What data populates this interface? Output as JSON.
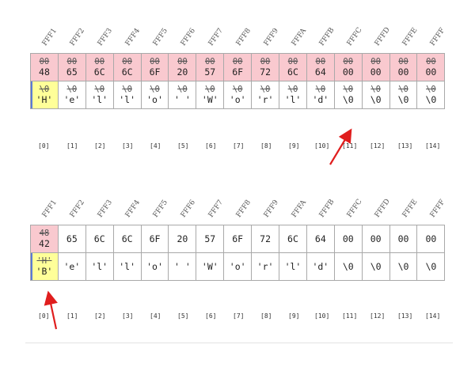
{
  "addresses": [
    "FFF1",
    "FFF2",
    "FFF3",
    "FFF4",
    "FFF5",
    "FFF6",
    "FFF7",
    "FFF8",
    "FFF9",
    "FFFA",
    "FFFB",
    "FFFC",
    "FFFD",
    "FFFE",
    "FFFF"
  ],
  "indices": [
    "[0]",
    "[1]",
    "[2]",
    "[3]",
    "[4]",
    "[5]",
    "[6]",
    "[7]",
    "[8]",
    "[9]",
    "[10]",
    "[11]",
    "[12]",
    "[13]",
    "[14]"
  ],
  "top_table": {
    "hex_old": [
      "00",
      "00",
      "00",
      "00",
      "00",
      "00",
      "00",
      "00",
      "00",
      "00",
      "00",
      "00",
      "00",
      "00",
      "00"
    ],
    "hex_new": [
      "48",
      "65",
      "6C",
      "6C",
      "6F",
      "20",
      "57",
      "6F",
      "72",
      "6C",
      "64",
      "00",
      "00",
      "00",
      "00"
    ],
    "char_old": [
      "\\0",
      "\\0",
      "\\0",
      "\\0",
      "\\0",
      "\\0",
      "\\0",
      "\\0",
      "\\0",
      "\\0",
      "\\0",
      "\\0",
      "\\0",
      "\\0",
      "\\0"
    ],
    "char_new": [
      "'H'",
      "'e'",
      "'l'",
      "'l'",
      "'o'",
      "' '",
      "'W'",
      "'o'",
      "'r'",
      "'l'",
      "'d'",
      "\\0",
      "\\0",
      "\\0",
      "\\0"
    ]
  },
  "bottom_table": {
    "hex_old_first": "48",
    "hex": [
      "42",
      "65",
      "6C",
      "6C",
      "6F",
      "20",
      "57",
      "6F",
      "72",
      "6C",
      "64",
      "00",
      "00",
      "00",
      "00"
    ],
    "char_old_first": "'H'",
    "char": [
      "'B'",
      "'e'",
      "'l'",
      "'l'",
      "'o'",
      "' '",
      "'W'",
      "'o'",
      "'r'",
      "'l'",
      "'d'",
      "\\0",
      "\\0",
      "\\0",
      "\\0"
    ]
  },
  "colors": {
    "pink": "#f9c9cf",
    "yellow": "#ffff99",
    "arrow": "#e01e1e",
    "border": "#a9a9a9"
  }
}
